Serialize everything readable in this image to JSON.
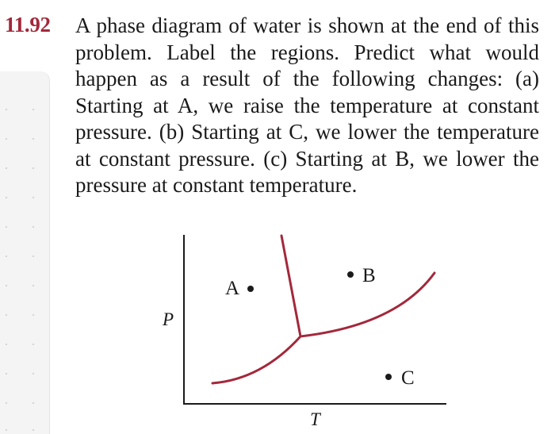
{
  "problem": {
    "number": "11.92",
    "text": "A phase diagram of water is shown at the end of this problem. Label the regions. Predict what would happen as a result of the following changes: (a) Starting at A, we raise the temperature at constant pressure. (b) Starting at C, we lower the temperature at constant pressure. (c) Starting at B, we lower the pressure at constant temperature."
  },
  "diagram": {
    "axis_x_label": "T",
    "axis_y_label": "P",
    "points": [
      {
        "label": "A"
      },
      {
        "label": "B"
      },
      {
        "label": "C"
      }
    ],
    "curve_color": "#a3283b"
  }
}
